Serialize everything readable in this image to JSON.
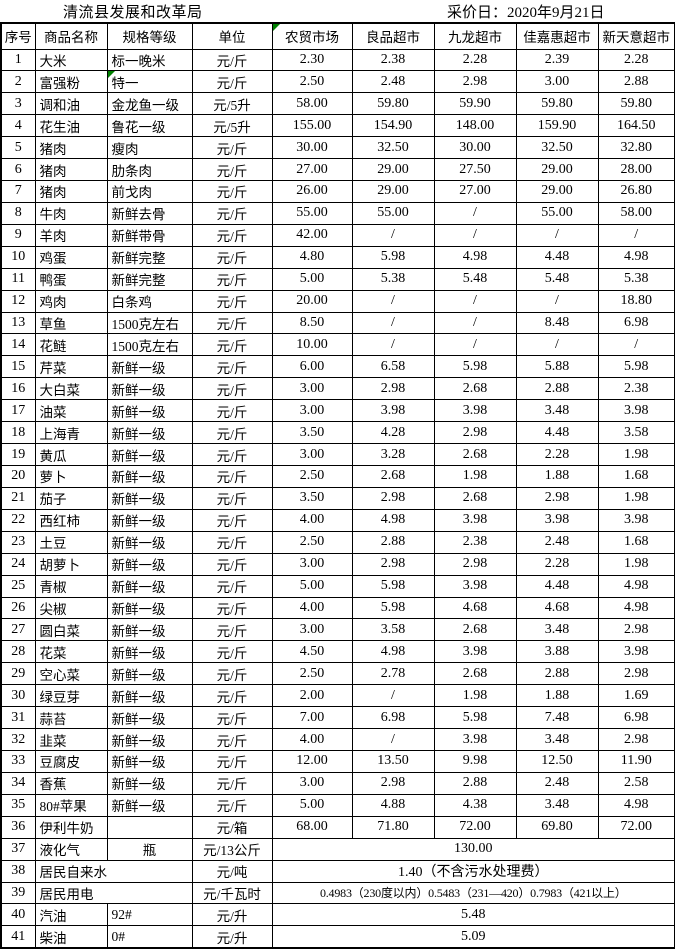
{
  "header": {
    "org": "清流县发展和改革局",
    "date_label": "采价日：2020年9月21日"
  },
  "flag_color": "#008000",
  "table": {
    "columns": [
      {
        "label": "序号"
      },
      {
        "label": "商品名称"
      },
      {
        "label": "规格等级"
      },
      {
        "label": "单位"
      },
      {
        "label": "农贸市场",
        "flag": true
      },
      {
        "label": "良品超市"
      },
      {
        "label": "九龙超市"
      },
      {
        "label": "佳嘉惠超市"
      },
      {
        "label": "新天意超市"
      }
    ],
    "rows": [
      {
        "no": "1",
        "name": "大米",
        "spec": "标一晚米",
        "unit": "元/斤",
        "prices": [
          "2.30",
          "2.38",
          "2.28",
          "2.39",
          "2.28"
        ]
      },
      {
        "no": "2",
        "name": "富强粉",
        "spec": "特一",
        "spec_flag": true,
        "unit": "元/斤",
        "prices": [
          "2.50",
          "2.48",
          "2.98",
          "3.00",
          "2.88"
        ]
      },
      {
        "no": "3",
        "name": "调和油",
        "spec": "金龙鱼一级",
        "unit": "元/5升",
        "prices": [
          "58.00",
          "59.80",
          "59.90",
          "59.80",
          "59.80"
        ]
      },
      {
        "no": "4",
        "name": "花生油",
        "spec": "鲁花一级",
        "unit": "元/5升",
        "prices": [
          "155.00",
          "154.90",
          "148.00",
          "159.90",
          "164.50"
        ]
      },
      {
        "no": "5",
        "name": "猪肉",
        "spec": "瘦肉",
        "unit": "元/斤",
        "prices": [
          "30.00",
          "32.50",
          "30.00",
          "32.50",
          "32.80"
        ]
      },
      {
        "no": "6",
        "name": "猪肉",
        "spec": "肋条肉",
        "unit": "元/斤",
        "prices": [
          "27.00",
          "29.00",
          "27.50",
          "29.00",
          "28.00"
        ]
      },
      {
        "no": "7",
        "name": "猪肉",
        "spec": "前戈肉",
        "unit": "元/斤",
        "prices": [
          "26.00",
          "29.00",
          "27.00",
          "29.00",
          "26.80"
        ]
      },
      {
        "no": "8",
        "name": "牛肉",
        "spec": "新鲜去骨",
        "unit": "元/斤",
        "prices": [
          "55.00",
          "55.00",
          "/",
          "55.00",
          "58.00"
        ]
      },
      {
        "no": "9",
        "name": "羊肉",
        "spec": "新鲜带骨",
        "unit": "元/斤",
        "prices": [
          "42.00",
          "/",
          "/",
          "/",
          "/"
        ]
      },
      {
        "no": "10",
        "name": "鸡蛋",
        "spec": "新鲜完整",
        "unit": "元/斤",
        "prices": [
          "4.80",
          "5.98",
          "4.98",
          "4.48",
          "4.98"
        ]
      },
      {
        "no": "11",
        "name": "鸭蛋",
        "spec": "新鲜完整",
        "unit": "元/斤",
        "prices": [
          "5.00",
          "5.38",
          "5.48",
          "5.48",
          "5.38"
        ]
      },
      {
        "no": "12",
        "name": "鸡肉",
        "spec": "白条鸡",
        "unit": "元/斤",
        "prices": [
          "20.00",
          "/",
          "/",
          "/",
          "18.80"
        ]
      },
      {
        "no": "13",
        "name": "草鱼",
        "spec": "1500克左右",
        "unit": "元/斤",
        "prices": [
          "8.50",
          "/",
          "/",
          "8.48",
          "6.98"
        ]
      },
      {
        "no": "14",
        "name": "花鲢",
        "spec": "1500克左右",
        "unit": "元/斤",
        "prices": [
          "10.00",
          "/",
          "/",
          "/",
          "/"
        ]
      },
      {
        "no": "15",
        "name": "芹菜",
        "spec": "新鲜一级",
        "unit": "元/斤",
        "prices": [
          "6.00",
          "6.58",
          "5.98",
          "5.88",
          "5.98"
        ]
      },
      {
        "no": "16",
        "name": "大白菜",
        "spec": "新鲜一级",
        "unit": "元/斤",
        "prices": [
          "3.00",
          "2.98",
          "2.68",
          "2.88",
          "2.38"
        ]
      },
      {
        "no": "17",
        "name": "油菜",
        "spec": "新鲜一级",
        "unit": "元/斤",
        "prices": [
          "3.00",
          "3.98",
          "3.98",
          "3.48",
          "3.98"
        ]
      },
      {
        "no": "18",
        "name": "上海青",
        "spec": "新鲜一级",
        "unit": "元/斤",
        "prices": [
          "3.50",
          "4.28",
          "2.98",
          "4.48",
          "3.58"
        ]
      },
      {
        "no": "19",
        "name": "黄瓜",
        "spec": "新鲜一级",
        "unit": "元/斤",
        "prices": [
          "3.00",
          "3.28",
          "2.68",
          "2.28",
          "1.98"
        ]
      },
      {
        "no": "20",
        "name": "萝卜",
        "spec": "新鲜一级",
        "unit": "元/斤",
        "prices": [
          "2.50",
          "2.68",
          "1.98",
          "1.88",
          "1.68"
        ]
      },
      {
        "no": "21",
        "name": "茄子",
        "spec": "新鲜一级",
        "unit": "元/斤",
        "prices": [
          "3.50",
          "2.98",
          "2.68",
          "2.98",
          "1.98"
        ]
      },
      {
        "no": "22",
        "name": "西红柿",
        "spec": "新鲜一级",
        "unit": "元/斤",
        "prices": [
          "4.00",
          "4.98",
          "3.98",
          "3.98",
          "3.98"
        ]
      },
      {
        "no": "23",
        "name": "土豆",
        "spec": "新鲜一级",
        "unit": "元/斤",
        "prices": [
          "2.50",
          "2.88",
          "2.38",
          "2.48",
          "1.68"
        ]
      },
      {
        "no": "24",
        "name": "胡萝卜",
        "spec": "新鲜一级",
        "unit": "元/斤",
        "prices": [
          "3.00",
          "2.98",
          "2.98",
          "2.28",
          "1.98"
        ]
      },
      {
        "no": "25",
        "name": "青椒",
        "spec": "新鲜一级",
        "unit": "元/斤",
        "prices": [
          "5.00",
          "5.98",
          "3.98",
          "4.48",
          "4.98"
        ]
      },
      {
        "no": "26",
        "name": "尖椒",
        "spec": "新鲜一级",
        "unit": "元/斤",
        "prices": [
          "4.00",
          "5.98",
          "4.68",
          "4.68",
          "4.98"
        ]
      },
      {
        "no": "27",
        "name": "圆白菜",
        "spec": "新鲜一级",
        "unit": "元/斤",
        "prices": [
          "3.00",
          "3.58",
          "2.68",
          "3.48",
          "2.98"
        ]
      },
      {
        "no": "28",
        "name": "花菜",
        "spec": "新鲜一级",
        "unit": "元/斤",
        "prices": [
          "4.50",
          "4.98",
          "3.98",
          "3.88",
          "3.98"
        ]
      },
      {
        "no": "29",
        "name": "空心菜",
        "spec": "新鲜一级",
        "unit": "元/斤",
        "prices": [
          "2.50",
          "2.78",
          "2.68",
          "2.88",
          "2.98"
        ]
      },
      {
        "no": "30",
        "name": "绿豆芽",
        "spec": "新鲜一级",
        "unit": "元/斤",
        "prices": [
          "2.00",
          "/",
          "1.98",
          "1.88",
          "1.69"
        ]
      },
      {
        "no": "31",
        "name": "蒜苔",
        "spec": "新鲜一级",
        "unit": "元/斤",
        "prices": [
          "7.00",
          "6.98",
          "5.98",
          "7.48",
          "6.98"
        ]
      },
      {
        "no": "32",
        "name": "韭菜",
        "spec": "新鲜一级",
        "unit": "元/斤",
        "prices": [
          "4.00",
          "/",
          "3.98",
          "3.48",
          "2.98"
        ]
      },
      {
        "no": "33",
        "name": "豆腐皮",
        "spec": "新鲜一级",
        "unit": "元/斤",
        "prices": [
          "12.00",
          "13.50",
          "9.98",
          "12.50",
          "11.90"
        ]
      },
      {
        "no": "34",
        "name": "香蕉",
        "spec": "新鲜一级",
        "unit": "元/斤",
        "prices": [
          "3.00",
          "2.98",
          "2.88",
          "2.48",
          "2.58"
        ]
      },
      {
        "no": "35",
        "name": "80#苹果",
        "spec": "新鲜一级",
        "unit": "元/斤",
        "prices": [
          "5.00",
          "4.88",
          "4.38",
          "3.48",
          "4.98"
        ]
      },
      {
        "no": "36",
        "name": "伊利牛奶",
        "spec": "",
        "unit": "元/箱",
        "prices": [
          "68.00",
          "71.80",
          "72.00",
          "69.80",
          "72.00"
        ]
      },
      {
        "no": "37",
        "name": "液化气",
        "spec": "瓶",
        "spec_center": true,
        "unit": "元/13公斤",
        "merged": "130.00"
      },
      {
        "no": "38",
        "name": "居民自来水",
        "name_span": 2,
        "unit": "元/吨",
        "merged": "1.40（不含污水处理费）"
      },
      {
        "no": "39",
        "name": "居民用电",
        "name_span": 2,
        "unit": "元/千瓦时",
        "merged": "0.4983（230度以内）0.5483（231—420）0.7983（421以上）",
        "merged_small": true
      },
      {
        "no": "40",
        "name": "汽油",
        "spec": "92#",
        "unit": "元/升",
        "merged": "5.48"
      },
      {
        "no": "41",
        "name": "柴油",
        "spec": "0#",
        "unit": "元/升",
        "merged": "5.09"
      }
    ]
  }
}
